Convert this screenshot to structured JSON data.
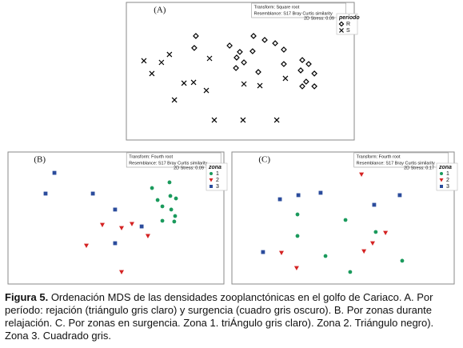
{
  "chart_data": [
    {
      "type": "scatter",
      "title": "(A)",
      "transform": "Transform: Square root",
      "resemblance": "Resemblance: S17 Bray Curtis similarity",
      "stress": "2D Stress: 0.09",
      "legend_title": "periodo",
      "legend_position": "top-right",
      "xlim": [
        0,
        100
      ],
      "ylim": [
        0,
        100
      ],
      "series": [
        {
          "name": "R",
          "color": "#000000",
          "marker": "diamond",
          "x": [
            30.5,
            29.8,
            45.3,
            55.8,
            60.7,
            65.3,
            49.8,
            48.4,
            55.4,
            69.1,
            51.6,
            57.9,
            48.1,
            77.2,
            80.0,
            76.5,
            82.5,
            78.9,
            77.2,
            82.5,
            69.1
          ],
          "y": [
            75.6,
            66.9,
            68.6,
            75.6,
            72.7,
            70.3,
            64.0,
            59.9,
            64.5,
            65.7,
            56.4,
            49.4,
            52.3,
            58.1,
            55.2,
            50.6,
            48.3,
            42.4,
            39.0,
            39.0,
            55.2
          ]
        },
        {
          "name": "S",
          "color": "#000000",
          "marker": "cross",
          "x": [
            7.7,
            18.9,
            15.4,
            11.2,
            36.5,
            25.3,
            29.5,
            35.1,
            21.1,
            58.6,
            51.6,
            38.6,
            51.2,
            66.0,
            69.8
          ],
          "y": [
            57.6,
            62.2,
            56.4,
            48.3,
            59.3,
            41.3,
            41.9,
            36.0,
            29.1,
            39.5,
            40.7,
            14.5,
            14.5,
            14.5,
            44.8
          ]
        }
      ]
    },
    {
      "type": "scatter",
      "title": "(B)",
      "transform": "Transform: Fourth root",
      "resemblance": "Resemblance: S17 Bray Curtis similarity",
      "stress": "2D Stress: 0.09",
      "legend_title": "zona",
      "legend_position": "top-right",
      "xlim": [
        0,
        100
      ],
      "ylim": [
        0,
        100
      ],
      "series": [
        {
          "name": "1",
          "color": "#1a9a5c",
          "marker": "circle",
          "x": [
            66.7,
            74.8,
            69.3,
            75.2,
            77.8,
            71.5,
            75.6,
            77.4,
            71.5,
            77.0
          ],
          "y": [
            72.7,
            77.0,
            63.6,
            66.7,
            64.8,
            58.8,
            56.4,
            51.5,
            47.9,
            47.3
          ]
        },
        {
          "name": "2",
          "color": "#d42222",
          "marker": "triangle-down",
          "x": [
            43.7,
            52.6,
            57.4,
            64.8,
            36.3,
            52.6
          ],
          "y": [
            44.8,
            42.4,
            45.5,
            36.4,
            29.1,
            9.1
          ]
        },
        {
          "name": "3",
          "color": "#2b4c9c",
          "marker": "square",
          "x": [
            21.5,
            17.4,
            39.3,
            49.6,
            61.9,
            49.6
          ],
          "y": [
            84.2,
            68.5,
            68.5,
            56.4,
            43.6,
            30.9
          ]
        }
      ]
    },
    {
      "type": "scatter",
      "title": "(C)",
      "transform": "Transform: Fourth root",
      "resemblance": "Resemblance: S17 Bray Curtis similarity",
      "stress": "2D Stress: 0.17",
      "legend_title": "zona",
      "legend_position": "top-right",
      "xlim": [
        0,
        100
      ],
      "ylim": [
        0,
        100
      ],
      "series": [
        {
          "name": "1",
          "color": "#1a9a5c",
          "marker": "circle",
          "x": [
            29.5,
            51.1,
            29.5,
            64.7,
            42.1,
            53.2,
            76.6
          ],
          "y": [
            52.7,
            48.5,
            36.4,
            39.4,
            21.2,
            9.1,
            17.6
          ]
        },
        {
          "name": "2",
          "color": "#d42222",
          "marker": "triangle-down",
          "x": [
            58.3,
            69.1,
            63.3,
            59.4,
            22.3,
            29.1
          ],
          "y": [
            83.0,
            38.8,
            30.9,
            24.8,
            23.6,
            12.1
          ]
        },
        {
          "name": "3",
          "color": "#2b4c9c",
          "marker": "square",
          "x": [
            21.6,
            29.9,
            39.9,
            75.5,
            64.0,
            14.0
          ],
          "y": [
            64.2,
            67.3,
            69.1,
            67.3,
            60.0,
            24.2
          ]
        }
      ]
    }
  ],
  "caption": {
    "label": "Figura 5.",
    "text": "Ordenación MDS de las densidades zooplanctónicas en el golfo de Cariaco. A. Por período: rejación (triángulo gris claro) y surgencia (cuadro gris oscuro). B. Por zonas durante relajación. C. Por zonas en surgencia. Zona 1. triÁngulo gris claro). Zona 2. Triángulo negro). Zona 3. Cuadrado gris."
  }
}
